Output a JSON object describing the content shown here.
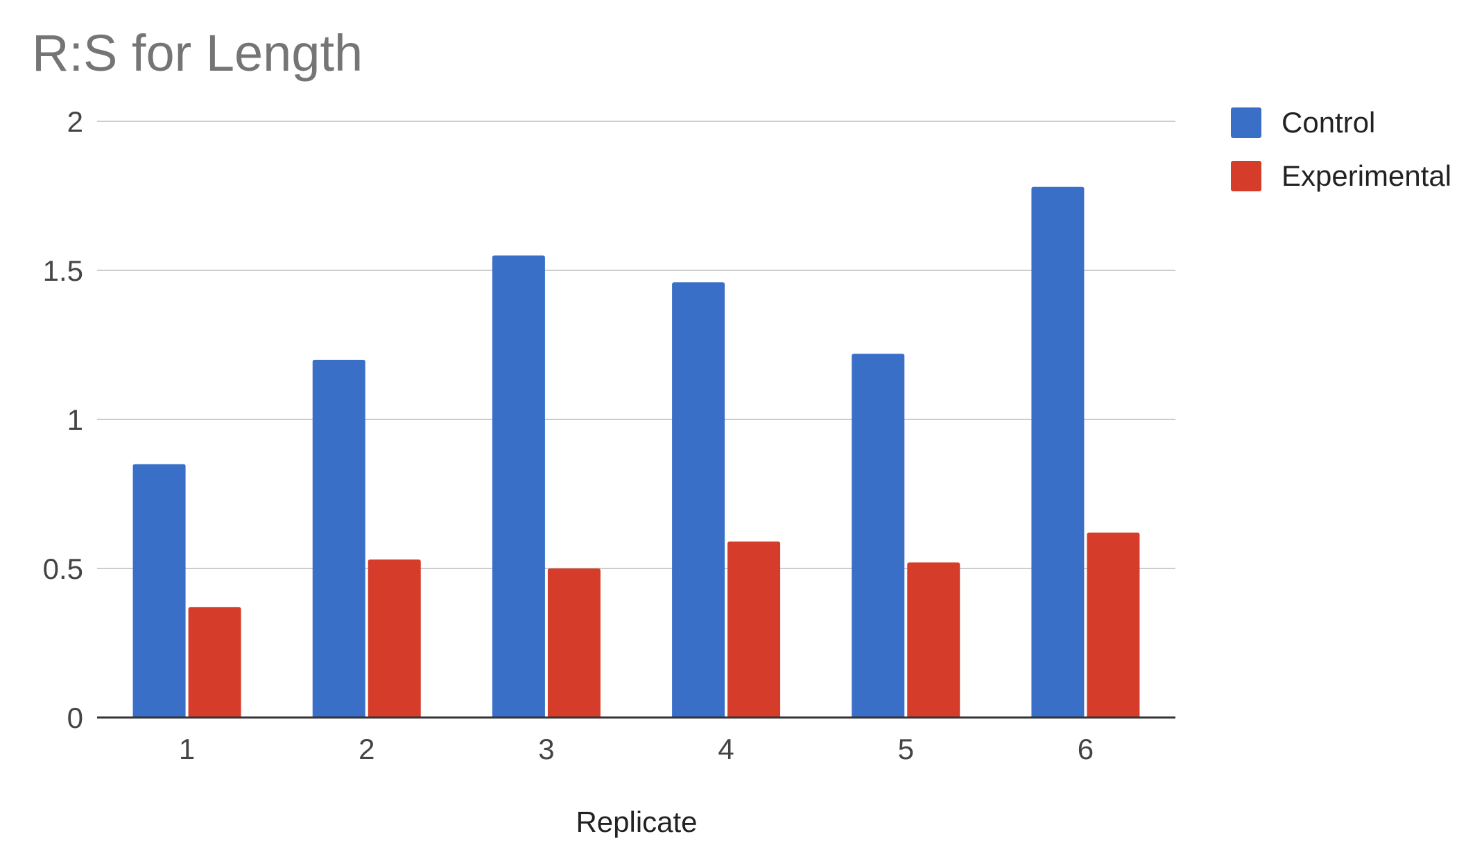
{
  "chart_data": {
    "type": "bar",
    "title": "R:S for Length",
    "xlabel": "Replicate",
    "ylabel": "",
    "categories": [
      "1",
      "2",
      "3",
      "4",
      "5",
      "6"
    ],
    "series": [
      {
        "name": "Control",
        "color": "#3a6fc8",
        "values": [
          0.85,
          1.2,
          1.55,
          1.46,
          1.22,
          1.78
        ]
      },
      {
        "name": "Experimental",
        "color": "#d63c2a",
        "values": [
          0.37,
          0.53,
          0.5,
          0.59,
          0.52,
          0.62
        ]
      }
    ],
    "ylim": [
      0,
      2
    ],
    "yticks": [
      "0",
      "0.5",
      "1",
      "1.5",
      "2"
    ],
    "grid": true,
    "legend_position": "right"
  }
}
